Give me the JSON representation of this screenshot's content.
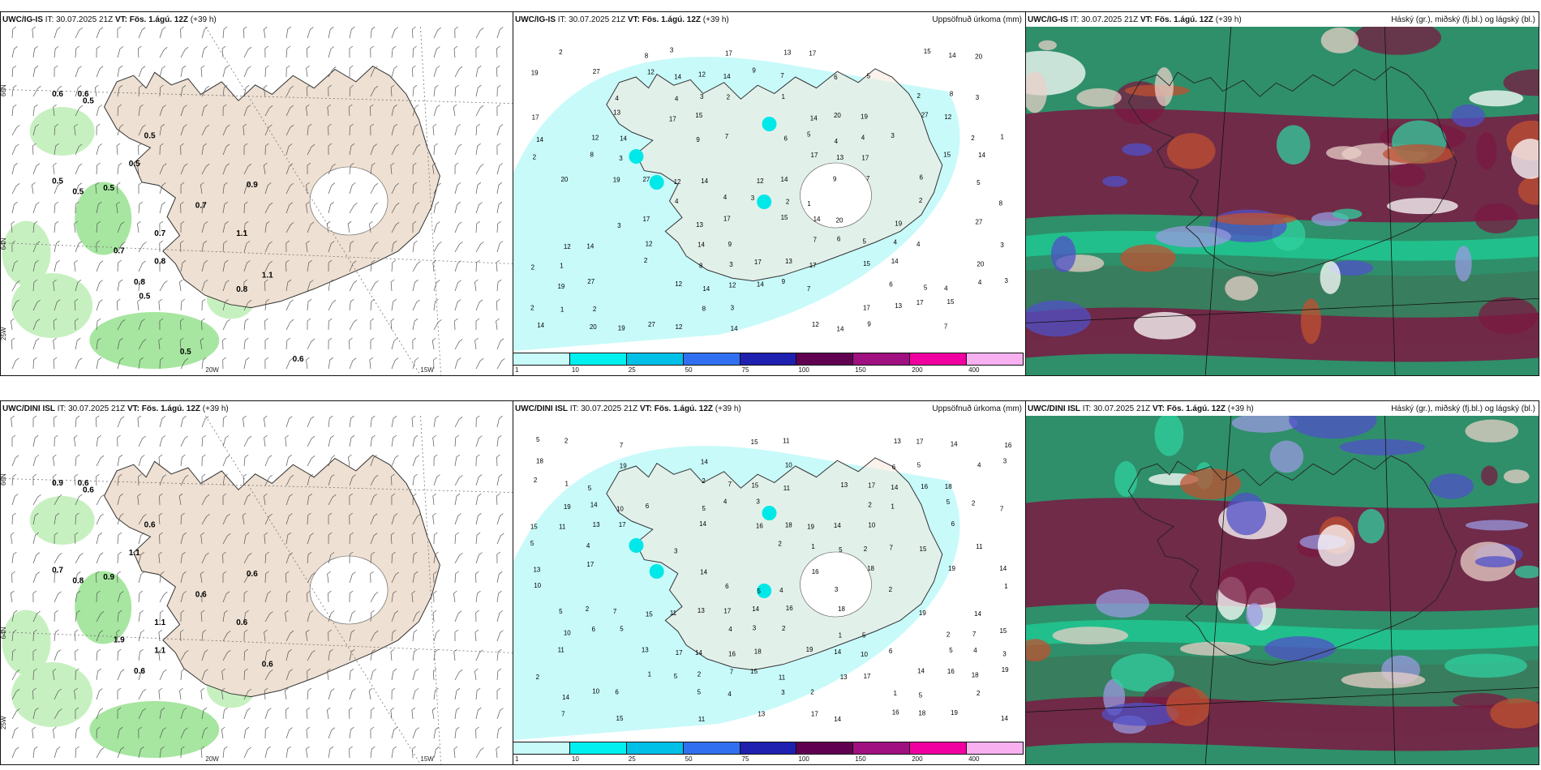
{
  "rows": [
    {
      "model": "UWC/IG-IS",
      "it_label": "IT:",
      "it_value": "30.07.2025 21Z",
      "vt_label": "VT:",
      "vt_value": "Fös. 1.ágú. 12Z",
      "lead": "(+39 h)",
      "precip_title": "Uppsöfnuð úrkoma (mm)",
      "cloud_title": "Háský (gr.), miðský (fj.bl.) og lágský (bl.)",
      "wind_values": [
        "0.6",
        "0.6",
        "0.5",
        "0.5",
        "0.5",
        "0.5",
        "0.5",
        "0.5",
        "0.7",
        "0.7",
        "0.7",
        "0.8",
        "0.8",
        "0.9",
        "1.1",
        "1.1",
        "0.5",
        "0.8",
        "0.5",
        "0.6"
      ],
      "precip_values": [
        "2",
        "8",
        "3",
        "17",
        "13",
        "17",
        "15",
        "14",
        "20",
        "19",
        "27",
        "12",
        "14",
        "12",
        "14",
        "9",
        "7",
        "6",
        "5",
        "4",
        "4",
        "3",
        "2",
        "1"
      ]
    },
    {
      "model": "UWC/DINI ISL",
      "it_label": "IT:",
      "it_value": "30.07.2025 21Z",
      "vt_label": "VT:",
      "vt_value": "Fös. 1.ágú. 12Z",
      "lead": "(+39 h)",
      "precip_title": "Uppsöfnuð úrkoma (mm)",
      "cloud_title": "Háský (gr.), miðský (fj.bl.) og lágský (bl.)",
      "wind_values": [
        "0.9",
        "0.6",
        "0.6",
        "0.6",
        "1.1",
        "0.7",
        "0.8",
        "0.9",
        "0.6",
        "1.1",
        "1.9",
        "1.1",
        "0.6",
        "0.6",
        "0.6",
        "0.6"
      ],
      "precip_values": [
        "5",
        "2",
        "7",
        "15",
        "11",
        "13",
        "17",
        "14",
        "16",
        "18",
        "19",
        "14",
        "10",
        "6",
        "5",
        "4",
        "3",
        "2",
        "1"
      ]
    }
  ],
  "grid_labels": {
    "lat66": "66N",
    "lat64": "64N",
    "lon20": "20W",
    "lon15": "15W",
    "lon25": "25W"
  },
  "colorbar": {
    "ticks": [
      "1",
      "10",
      "25",
      "50",
      "75",
      "100",
      "150",
      "200",
      "400"
    ],
    "colors": [
      "#c8fafa",
      "#00f0f0",
      "#00c0e8",
      "#3070f0",
      "#2020b0",
      "#600050",
      "#a01080",
      "#f000a0",
      "#f8b0f0"
    ]
  }
}
